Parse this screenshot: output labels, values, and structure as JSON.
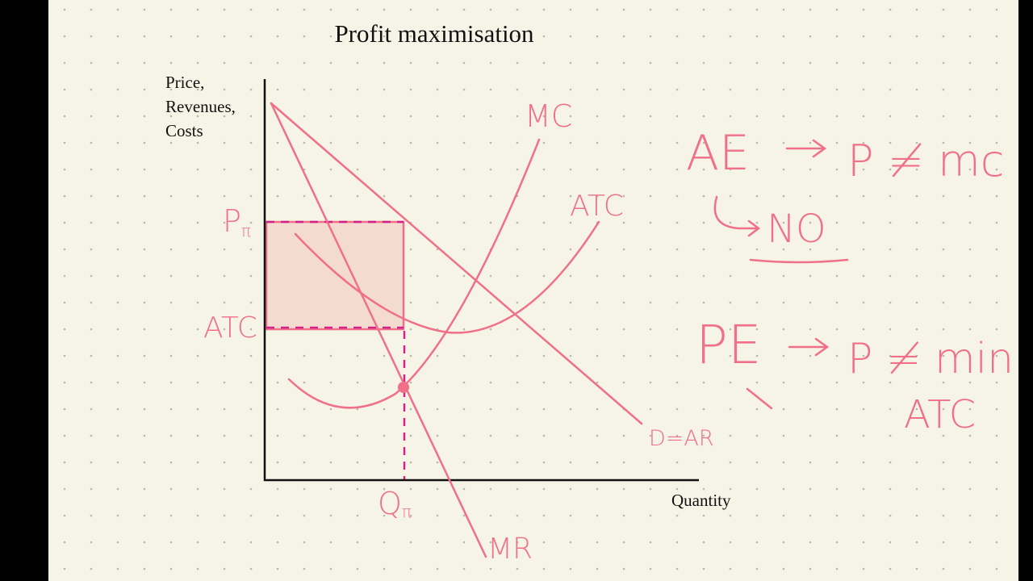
{
  "title": "Profit maximisation",
  "axes": {
    "y_label": [
      "Price,",
      "Revenues,",
      "Costs"
    ],
    "x_label": "Quantity"
  },
  "curves": {
    "mc": "MC",
    "atc": "ATC",
    "demand": "D=AR",
    "mr": "MR"
  },
  "markers": {
    "price": {
      "main": "P",
      "sub": "π"
    },
    "cost": "ATC",
    "quantity": {
      "main": "Q",
      "sub": "π"
    }
  },
  "notes": [
    {
      "left": "AE",
      "right": "P ≠ mc",
      "answer": "NO"
    },
    {
      "left": "PE",
      "right": [
        "P ≠ min",
        "ATC"
      ]
    }
  ]
}
